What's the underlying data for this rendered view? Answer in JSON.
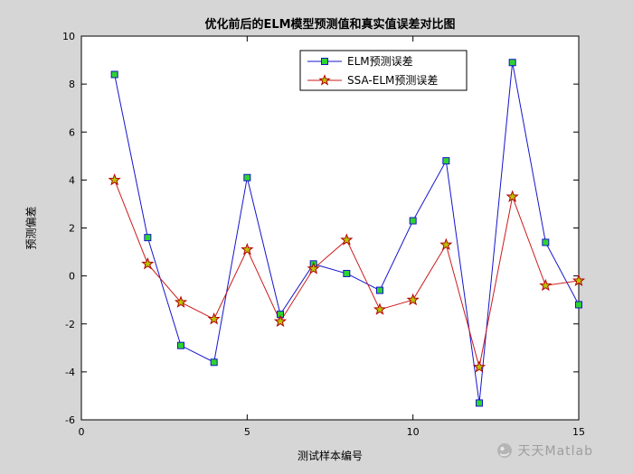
{
  "watermark": {
    "text": "天天Matlab"
  },
  "colors": {
    "figure_bg": "#d6d6d6",
    "plot_bg": "#ffffff",
    "axis": "#000000",
    "elm_line": "#1414cc",
    "elm_marker_fill": "#2ed42e",
    "elm_marker_edge": "#0a6e0a",
    "ssa_line": "#cc1a1a",
    "ssa_marker_fill": "#b9c400",
    "ssa_marker_edge": "#b30000",
    "legend_bg": "#ffffff",
    "legend_border": "#000000"
  },
  "chart_data": {
    "type": "line",
    "title": "优化前后的ELM模型预测值和真实值误差对比图",
    "xlabel": "测试样本编号",
    "ylabel": "预测偏差",
    "xlim": [
      0,
      15
    ],
    "ylim": [
      -6,
      10
    ],
    "xticks": [
      0,
      5,
      10,
      15
    ],
    "yticks": [
      -6,
      -4,
      -2,
      0,
      2,
      4,
      6,
      8,
      10
    ],
    "grid": false,
    "legend_position": "top-center",
    "x": [
      1,
      2,
      3,
      4,
      5,
      6,
      7,
      8,
      9,
      10,
      11,
      12,
      13,
      14,
      15
    ],
    "series": [
      {
        "name": "ELM预测误差",
        "marker": "square",
        "values": [
          8.4,
          1.6,
          -2.9,
          -3.6,
          4.1,
          -1.6,
          0.5,
          0.1,
          -0.6,
          2.3,
          4.8,
          -5.3,
          8.9,
          1.4,
          -1.2
        ]
      },
      {
        "name": "SSA-ELM预测误差",
        "marker": "star",
        "values": [
          4.0,
          0.5,
          -1.1,
          -1.8,
          1.1,
          -1.9,
          0.3,
          1.5,
          -1.4,
          -1.0,
          1.3,
          -3.8,
          3.3,
          -0.4,
          -0.2
        ]
      }
    ]
  }
}
